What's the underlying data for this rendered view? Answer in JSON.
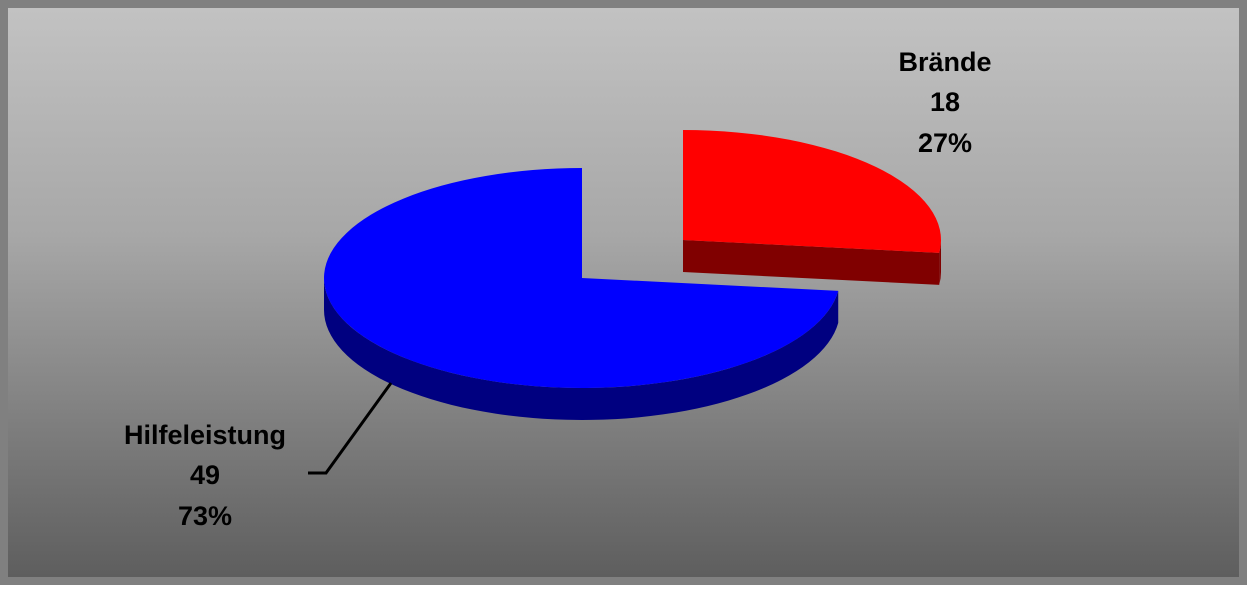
{
  "chart_data": {
    "type": "pie",
    "style": "3d-exploded",
    "title": "",
    "legend": "none",
    "categories": [
      "Brände",
      "Hilfeleistung"
    ],
    "values": [
      18,
      49
    ],
    "percentages": [
      "27%",
      "73%"
    ],
    "colors": [
      "#ff0000",
      "#0000ff"
    ],
    "side_colors": [
      "#800000",
      "#000080"
    ],
    "data_labels": [
      {
        "name": "Brände",
        "value": "18",
        "percent": "27%"
      },
      {
        "name": "Hilfeleistung",
        "value": "49",
        "percent": "73%"
      }
    ]
  }
}
